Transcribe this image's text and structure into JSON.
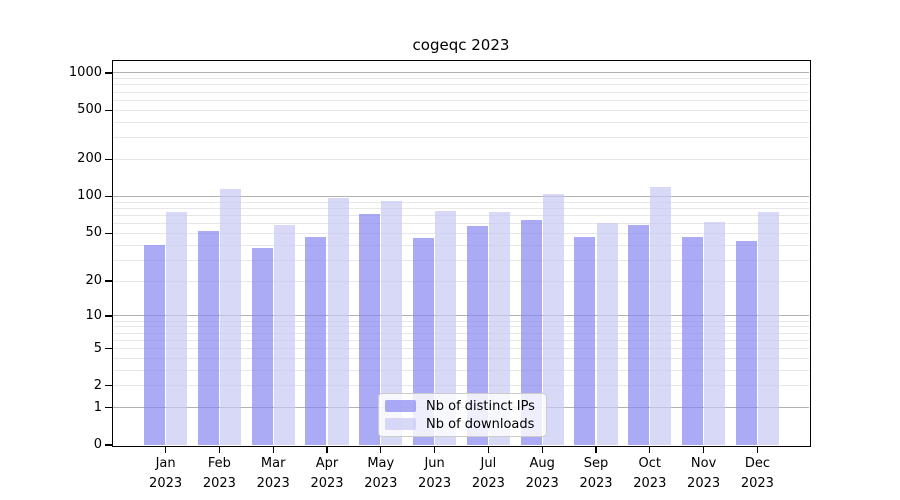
{
  "page": {
    "title": "cogeqc 2023"
  },
  "chart_data": {
    "type": "bar",
    "title": "cogeqc 2023",
    "categories": [
      "Jan 2023",
      "Feb 2023",
      "Mar 2023",
      "Apr 2023",
      "May 2023",
      "Jun 2023",
      "Jul 2023",
      "Aug 2023",
      "Sep 2023",
      "Oct 2023",
      "Nov 2023",
      "Dec 2023"
    ],
    "series": [
      {
        "name": "Nb of distinct IPs",
        "color": "rgba(134,134,241,0.7)",
        "values": [
          40,
          52,
          38,
          47,
          72,
          46,
          57,
          64,
          47,
          58,
          47,
          43
        ]
      },
      {
        "name": "Nb of downloads",
        "color": "rgba(200,200,243,0.7)",
        "values": [
          74,
          114,
          59,
          97,
          91,
          76,
          75,
          105,
          61,
          119,
          62,
          75
        ]
      }
    ],
    "xlabel": "",
    "ylabel": "",
    "y_axis": {
      "scale": "log10(1+x)",
      "ticks": [
        0,
        1,
        2,
        5,
        10,
        20,
        50,
        100,
        200,
        500,
        1000
      ],
      "minor_gridline_bases": [
        2,
        3,
        4,
        5,
        6,
        7,
        8,
        9
      ],
      "minor_gridline_decades": [
        1,
        10,
        100
      ],
      "range_top": 1240
    },
    "grid": true,
    "legend_position": "lower center"
  },
  "colors": {
    "background": "#ffffff",
    "axis": "#000000",
    "grid_major": "#b2b2b2",
    "grid_minor": "#e7e7e7",
    "legend_border": "#cccccc",
    "legend_bg": "rgba(255,255,255,0.8)",
    "ip_bar": "rgba(134,134,241,0.7)",
    "downloads_bar": "rgba(200,200,243,0.7)"
  }
}
